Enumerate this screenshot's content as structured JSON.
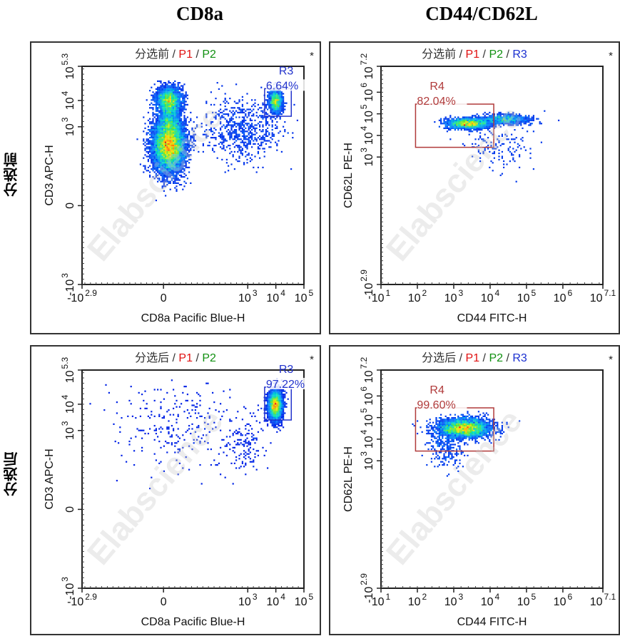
{
  "column_titles": [
    "CD8a",
    "CD44/CD62L"
  ],
  "row_labels": [
    "分选前",
    "分选后"
  ],
  "watermark": "Elabscience",
  "colors": {
    "p1": "#e01010",
    "p2": "#109010",
    "r3_label": "#1a2fd0",
    "r3_gate": "#2233cc",
    "r4_gate": "#b03a3a",
    "axis": "#222222"
  },
  "chart_data": [
    {
      "id": "cd8a-before",
      "type": "scatter",
      "title_parts": [
        {
          "text": "分选前",
          "cls": "base"
        },
        {
          "text": " / ",
          "cls": "base"
        },
        {
          "text": "P1",
          "cls": "p1"
        },
        {
          "text": " / ",
          "cls": "base"
        },
        {
          "text": "P2",
          "cls": "p2"
        }
      ],
      "star": "*",
      "xlabel": "CD8a Pacific Blue-H",
      "ylabel": "CD3 APC-H",
      "x_scale": "biexponential",
      "y_scale": "biexponential",
      "xlim": [
        -2.9,
        5
      ],
      "ylim": [
        -3,
        5.3
      ],
      "x_ticks": [
        {
          "v": -2.9,
          "label": "-10",
          "sup": "2.9"
        },
        {
          "v": 0,
          "label": "0",
          "sup": ""
        },
        {
          "v": 3,
          "label": "10",
          "sup": "3"
        },
        {
          "v": 4,
          "label": "10",
          "sup": "4"
        },
        {
          "v": 5,
          "label": "10",
          "sup": "5"
        }
      ],
      "y_ticks": [
        {
          "v": -3,
          "label": "-10",
          "sup": "3"
        },
        {
          "v": 0,
          "label": "0",
          "sup": ""
        },
        {
          "v": 3,
          "label": "10",
          "sup": "3"
        },
        {
          "v": 4,
          "label": "10",
          "sup": "4"
        },
        {
          "v": 5.3,
          "label": "10",
          "sup": "5.3"
        }
      ],
      "gate": {
        "name": "R3",
        "percent": "6.64%",
        "x": [
          3.6,
          4.55
        ],
        "y": [
          3.4,
          4.45
        ],
        "color_key": "r3_gate"
      },
      "clusters": [
        {
          "cx": 0.2,
          "cy": 2.3,
          "sx": 0.28,
          "sy": 0.5,
          "n": 9000
        },
        {
          "cx": 0.2,
          "cy": 4.0,
          "sx": 0.22,
          "sy": 0.25,
          "n": 2500
        },
        {
          "cx": 0.2,
          "cy": 3.3,
          "sx": 0.18,
          "sy": 0.3,
          "n": 900
        },
        {
          "cx": 4.0,
          "cy": 3.95,
          "sx": 0.12,
          "sy": 0.22,
          "n": 1200
        },
        {
          "cx": 2.8,
          "cy": 2.9,
          "sx": 0.7,
          "sy": 0.55,
          "n": 700
        }
      ]
    },
    {
      "id": "cd44-cd62l-before",
      "type": "scatter",
      "title_parts": [
        {
          "text": "分选前",
          "cls": "base"
        },
        {
          "text": " / ",
          "cls": "base"
        },
        {
          "text": "P1",
          "cls": "p1"
        },
        {
          "text": " / ",
          "cls": "base"
        },
        {
          "text": "P2",
          "cls": "p2"
        },
        {
          "text": " / ",
          "cls": "base"
        },
        {
          "text": "R3",
          "cls": "r3"
        }
      ],
      "star": "*",
      "xlabel": "CD44 FITC-H",
      "ylabel": "CD62L PE-H",
      "x_scale": "log",
      "y_scale": "biexponential",
      "xlim": [
        1,
        7.1
      ],
      "ylim": [
        -2.9,
        7.2
      ],
      "x_ticks": [
        {
          "v": 1,
          "label": "10",
          "sup": "1"
        },
        {
          "v": 2,
          "label": "10",
          "sup": "2"
        },
        {
          "v": 3,
          "label": "10",
          "sup": "3"
        },
        {
          "v": 4,
          "label": "10",
          "sup": "4"
        },
        {
          "v": 5,
          "label": "10",
          "sup": "5"
        },
        {
          "v": 6,
          "label": "10",
          "sup": "6"
        },
        {
          "v": 7.1,
          "label": "10",
          "sup": "7.1"
        }
      ],
      "y_ticks": [
        {
          "v": -2.9,
          "label": "-10",
          "sup": "2.9"
        },
        {
          "v": 3,
          "label": "10",
          "sup": "3"
        },
        {
          "v": 4,
          "label": "10",
          "sup": "4"
        },
        {
          "v": 5,
          "label": "10",
          "sup": "5"
        },
        {
          "v": 6,
          "label": "10",
          "sup": "6"
        },
        {
          "v": 7.2,
          "label": "10",
          "sup": "7.2"
        }
      ],
      "gate": {
        "name": "R4",
        "percent": "82.04%",
        "x": [
          1.95,
          4.1
        ],
        "y": [
          3.45,
          5.45
        ],
        "color_key": "r4_gate"
      },
      "clusters": [
        {
          "cx": 3.4,
          "cy": 4.55,
          "sx": 0.3,
          "sy": 0.12,
          "n": 1800
        },
        {
          "cx": 4.4,
          "cy": 4.75,
          "sx": 0.35,
          "sy": 0.12,
          "n": 800
        },
        {
          "cx": 4.2,
          "cy": 3.6,
          "sx": 0.5,
          "sy": 0.6,
          "n": 150
        }
      ]
    },
    {
      "id": "cd8a-after",
      "type": "scatter",
      "title_parts": [
        {
          "text": "分选后",
          "cls": "base"
        },
        {
          "text": " / ",
          "cls": "base"
        },
        {
          "text": "P1",
          "cls": "p1"
        },
        {
          "text": " / ",
          "cls": "base"
        },
        {
          "text": "P2",
          "cls": "p2"
        }
      ],
      "star": "*",
      "xlabel": "CD8a Pacific Blue-H",
      "ylabel": "CD3 APC-H",
      "x_scale": "biexponential",
      "y_scale": "biexponential",
      "xlim": [
        -2.9,
        5
      ],
      "ylim": [
        -3,
        5.3
      ],
      "x_ticks": [
        {
          "v": -2.9,
          "label": "-10",
          "sup": "2.9"
        },
        {
          "v": 0,
          "label": "0",
          "sup": ""
        },
        {
          "v": 3,
          "label": "10",
          "sup": "3"
        },
        {
          "v": 4,
          "label": "10",
          "sup": "4"
        },
        {
          "v": 5,
          "label": "10",
          "sup": "5"
        }
      ],
      "y_ticks": [
        {
          "v": -3,
          "label": "-10",
          "sup": "3"
        },
        {
          "v": 0,
          "label": "0",
          "sup": ""
        },
        {
          "v": 3,
          "label": "10",
          "sup": "3"
        },
        {
          "v": 4,
          "label": "10",
          "sup": "4"
        },
        {
          "v": 5.3,
          "label": "10",
          "sup": "5.3"
        }
      ],
      "gate": {
        "name": "R3",
        "percent": "97.22%",
        "x": [
          3.6,
          4.55
        ],
        "y": [
          3.4,
          4.65
        ],
        "color_key": "r3_gate"
      },
      "clusters": [
        {
          "cx": 3.98,
          "cy": 3.95,
          "sx": 0.12,
          "sy": 0.28,
          "n": 4500
        },
        {
          "cx": 0.5,
          "cy": 3.2,
          "sx": 1.1,
          "sy": 0.8,
          "n": 250
        },
        {
          "cx": 2.9,
          "cy": 2.6,
          "sx": 0.35,
          "sy": 0.55,
          "n": 150
        }
      ]
    },
    {
      "id": "cd44-cd62l-after",
      "type": "scatter",
      "title_parts": [
        {
          "text": "分选后",
          "cls": "base"
        },
        {
          "text": " / ",
          "cls": "base"
        },
        {
          "text": "P1",
          "cls": "p1"
        },
        {
          "text": " / ",
          "cls": "base"
        },
        {
          "text": "P2",
          "cls": "p2"
        },
        {
          "text": " / ",
          "cls": "base"
        },
        {
          "text": "R3",
          "cls": "r3"
        }
      ],
      "star": "*",
      "xlabel": "CD44 FITC-H",
      "ylabel": "CD62L PE-H",
      "x_scale": "log",
      "y_scale": "biexponential",
      "xlim": [
        1,
        7.1
      ],
      "ylim": [
        -2.9,
        7.2
      ],
      "x_ticks": [
        {
          "v": 1,
          "label": "10",
          "sup": "1"
        },
        {
          "v": 2,
          "label": "10",
          "sup": "2"
        },
        {
          "v": 3,
          "label": "10",
          "sup": "3"
        },
        {
          "v": 4,
          "label": "10",
          "sup": "4"
        },
        {
          "v": 5,
          "label": "10",
          "sup": "5"
        },
        {
          "v": 6,
          "label": "10",
          "sup": "6"
        },
        {
          "v": 7.1,
          "label": "10",
          "sup": "7.1"
        }
      ],
      "y_ticks": [
        {
          "v": -2.9,
          "label": "-10",
          "sup": "2.9"
        },
        {
          "v": 3,
          "label": "10",
          "sup": "3"
        },
        {
          "v": 4,
          "label": "10",
          "sup": "4"
        },
        {
          "v": 5,
          "label": "10",
          "sup": "5"
        },
        {
          "v": 6,
          "label": "10",
          "sup": "6"
        },
        {
          "v": 7.2,
          "label": "10",
          "sup": "7.2"
        }
      ],
      "gate": {
        "name": "R4",
        "percent": "99.60%",
        "x": [
          1.95,
          4.1
        ],
        "y": [
          3.45,
          5.45
        ],
        "color_key": "r4_gate"
      },
      "clusters": [
        {
          "cx": 3.3,
          "cy": 4.5,
          "sx": 0.35,
          "sy": 0.22,
          "n": 3500
        },
        {
          "cx": 2.8,
          "cy": 3.6,
          "sx": 0.25,
          "sy": 0.45,
          "n": 250
        }
      ]
    }
  ]
}
